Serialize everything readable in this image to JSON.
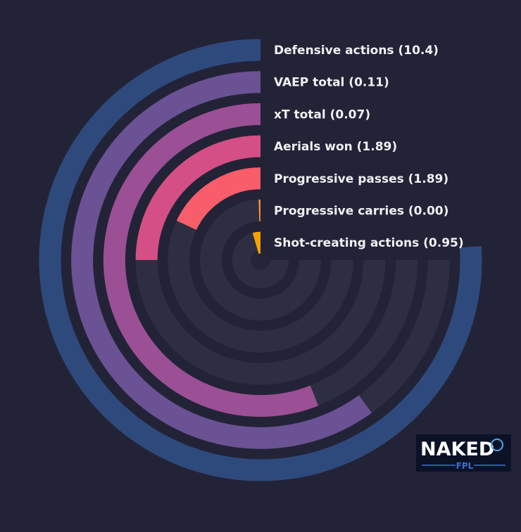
{
  "chart_data": {
    "type": "radial-bar",
    "track_color": "#2e2e42",
    "background": "#232337",
    "series": [
      {
        "name": "Defensive actions",
        "value_label": "10.4",
        "fraction": 0.76,
        "color": "#2e4a7d"
      },
      {
        "name": "VAEP total",
        "value_label": "0.11",
        "fraction": 0.6,
        "color": "#6a5294"
      },
      {
        "name": "xT total",
        "value_label": "0.07",
        "fraction": 0.56,
        "color": "#9b4f95"
      },
      {
        "name": "Aerials won",
        "value_label": "1.89",
        "fraction": 0.25,
        "color": "#d44f85"
      },
      {
        "name": "Progressive passes",
        "value_label": "1.89",
        "fraction": 0.18,
        "color": "#f85d6b"
      },
      {
        "name": "Progressive carries",
        "value_label": "0.00",
        "fraction": 0.005,
        "color": "#f48b3a"
      },
      {
        "name": "Shot-creating actions",
        "value_label": "0.95",
        "fraction": 0.045,
        "color": "#f5a300"
      }
    ]
  },
  "logo": {
    "main_text": "NAKED",
    "sub_text": "FPL"
  }
}
